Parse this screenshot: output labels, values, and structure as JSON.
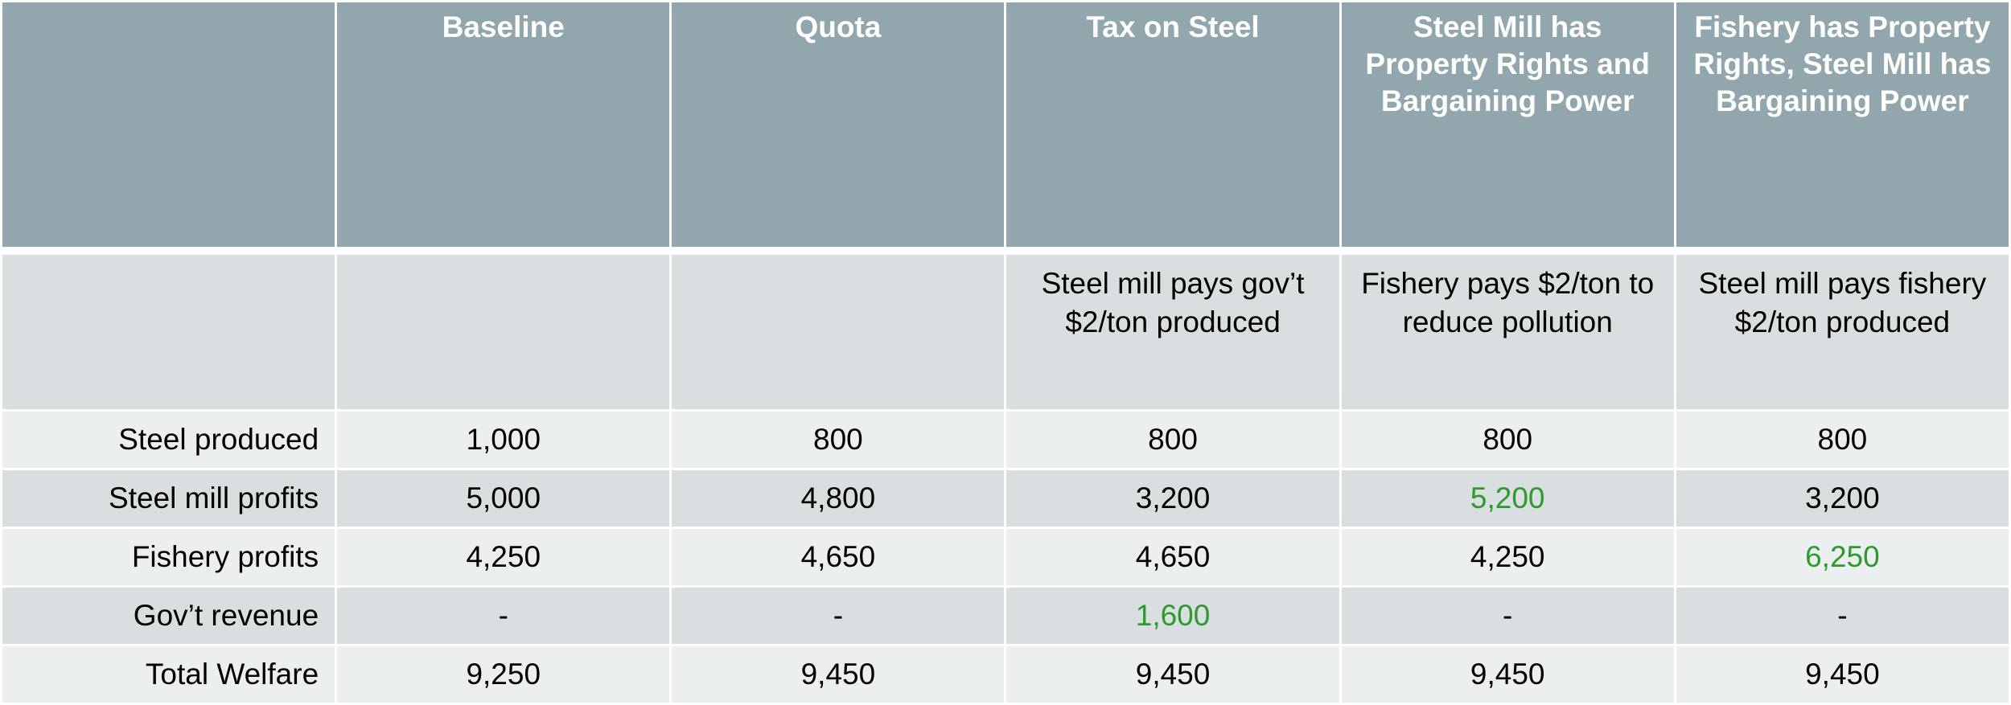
{
  "colors": {
    "header_bg": "#92A6AD",
    "row_light": "#ECEFF0",
    "row_dark": "#D9DEE0",
    "highlight": "#2E9A2E"
  },
  "headers": [
    "",
    "Baseline",
    "Quota",
    "Tax on Steel",
    "Steel Mill has Property Rights and Bargaining Power",
    "Fishery has Property Rights, Steel Mill has Bargaining Power"
  ],
  "descriptions": [
    "",
    "",
    "",
    "Steel mill pays gov’t $2/ton produced",
    "Fishery pays $2/ton to reduce pollution",
    "Steel mill pays fishery $2/ton produced"
  ],
  "rows": [
    {
      "label": "Steel produced",
      "values": [
        "1,000",
        "800",
        "800",
        "800",
        "800"
      ]
    },
    {
      "label": "Steel mill profits",
      "values": [
        "5,000",
        "4,800",
        "3,200",
        "5,200",
        "3,200"
      ]
    },
    {
      "label": "Fishery profits",
      "values": [
        "4,250",
        "4,650",
        "4,650",
        "4,250",
        "6,250"
      ]
    },
    {
      "label": "Gov’t revenue",
      "values": [
        "-",
        "-",
        "1,600",
        "-",
        "-"
      ]
    },
    {
      "label": "Total Welfare",
      "values": [
        "9,250",
        "9,450",
        "9,450",
        "9,450",
        "9,450"
      ]
    }
  ],
  "highlighted": [
    [
      1,
      3
    ],
    [
      2,
      4
    ],
    [
      3,
      2
    ]
  ]
}
